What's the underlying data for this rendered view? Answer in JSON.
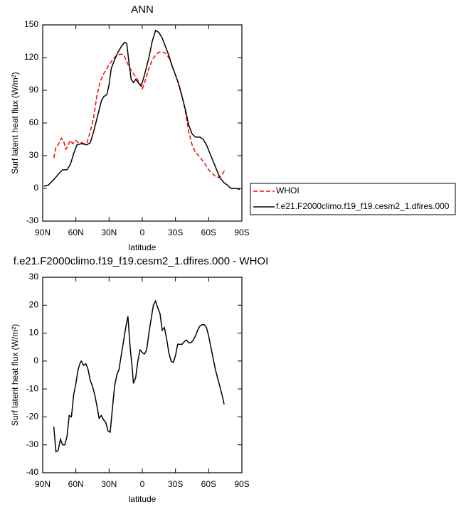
{
  "chart_data": [
    {
      "type": "line",
      "title": "ANN",
      "x_label": "latitude",
      "y_label": "Surf latent heat flux (W/m²)",
      "xlim": [
        90,
        -90
      ],
      "xticks": [
        {
          "value": 90,
          "label": "90N"
        },
        {
          "value": 60,
          "label": "60N"
        },
        {
          "value": 30,
          "label": "30N"
        },
        0,
        {
          "value": -30,
          "label": "30S"
        },
        {
          "value": -60,
          "label": "60S"
        },
        {
          "value": -90,
          "label": "90S"
        }
      ],
      "ylim": [
        -30,
        150
      ],
      "yticks": [
        -30,
        0,
        30,
        60,
        90,
        120,
        150
      ],
      "legend": "outside-right",
      "series": [
        {
          "name": "WHOI",
          "color": "#ff0000",
          "style": "dashed",
          "x": [
            80,
            78,
            76,
            73,
            71,
            69,
            67,
            65,
            63,
            60,
            58,
            55,
            52,
            50,
            47,
            44,
            41,
            38,
            35,
            32,
            29,
            26,
            23,
            20,
            17,
            14,
            11,
            8,
            5,
            2,
            0,
            -3,
            -6,
            -9,
            -12,
            -15,
            -18,
            -21,
            -24,
            -27,
            -30,
            -33,
            -36,
            -39,
            -42,
            -45,
            -48,
            -51,
            -54,
            -57,
            -60,
            -63,
            -66,
            -69,
            -72,
            -75
          ],
          "values": [
            28,
            38,
            40,
            46,
            43,
            36,
            40,
            44,
            41,
            44,
            42,
            42,
            41,
            42,
            52,
            65,
            85,
            98,
            105,
            110,
            115,
            119,
            122,
            123,
            123,
            116,
            110,
            105,
            101,
            96,
            91,
            100,
            110,
            118,
            122,
            125,
            125,
            124,
            120,
            113,
            104,
            96,
            85,
            70,
            52,
            40,
            33,
            30,
            26,
            22,
            17,
            14,
            11,
            10,
            12,
            18
          ]
        },
        {
          "name": "f.e21.F2000climo.f19_f19.cesm2_1.dfires.000",
          "color": "#000000",
          "style": "solid",
          "x": [
            89,
            85,
            80,
            75,
            72,
            68,
            65,
            62,
            59,
            55,
            50,
            47,
            44,
            40,
            37,
            35,
            32,
            30,
            28,
            25,
            22,
            19,
            16,
            14,
            12,
            10,
            8,
            6,
            3,
            1,
            0,
            -3,
            -6,
            -9,
            -12,
            -15,
            -18,
            -21,
            -24,
            -27,
            -30,
            -33,
            -36,
            -39,
            -42,
            -45,
            -48,
            -52,
            -55,
            -58,
            -62,
            -66,
            -70,
            -74,
            -77,
            -80,
            -85,
            -88
          ],
          "values": [
            2,
            3,
            8,
            14,
            17,
            17,
            22,
            32,
            40,
            41,
            40,
            42,
            52,
            68,
            80,
            84,
            86,
            95,
            110,
            118,
            125,
            130,
            134,
            133,
            115,
            100,
            97,
            100,
            96,
            94,
            97,
            108,
            120,
            135,
            145,
            143,
            138,
            130,
            122,
            112,
            104,
            95,
            84,
            72,
            58,
            50,
            47,
            47,
            45,
            40,
            30,
            20,
            10,
            5,
            3,
            0,
            0,
            -1
          ]
        }
      ]
    },
    {
      "type": "line",
      "title": "f.e21.F2000climo.f19_f19.cesm2_1.dfires.000 - WHOI",
      "x_label": "latitude",
      "y_label": "Surf latent heat flux (W/m²)",
      "xlim": [
        90,
        -90
      ],
      "xticks": [
        {
          "value": 90,
          "label": "90N"
        },
        {
          "value": 60,
          "label": "60N"
        },
        {
          "value": 30,
          "label": "30N"
        },
        0,
        {
          "value": -30,
          "label": "30S"
        },
        {
          "value": -60,
          "label": "60S"
        },
        {
          "value": -90,
          "label": "90S"
        }
      ],
      "ylim": [
        -40,
        30
      ],
      "yticks": [
        -40,
        -30,
        -20,
        -10,
        0,
        10,
        20,
        30
      ],
      "series": [
        {
          "color": "#000000",
          "style": "solid",
          "x": [
            80,
            78,
            76,
            74,
            72,
            70,
            68,
            66,
            64,
            62,
            60,
            58,
            56,
            55,
            53,
            51,
            49,
            47,
            45,
            43,
            41,
            39,
            37,
            35,
            33,
            31,
            29,
            27,
            25,
            23,
            21,
            19,
            17,
            15,
            13,
            11,
            9,
            8,
            6,
            4,
            2,
            0,
            -2,
            -4,
            -6,
            -8,
            -10,
            -12,
            -14,
            -16,
            -18,
            -20,
            -22,
            -24,
            -26,
            -28,
            -30,
            -32,
            -34,
            -36,
            -38,
            -40,
            -42,
            -44,
            -46,
            -48,
            -50,
            -52,
            -54,
            -56,
            -58,
            -60,
            -62,
            -64,
            -66,
            -68,
            -70,
            -72,
            -74
          ],
          "values": [
            -23.5,
            -32.5,
            -32,
            -28,
            -30,
            -30,
            -27,
            -19.5,
            -20,
            -12,
            -8,
            -3,
            -0.5,
            0,
            -1.5,
            -1,
            -3,
            -7,
            -9,
            -12,
            -16,
            -20.5,
            -19.5,
            -21,
            -22,
            -25,
            -25.5,
            -17,
            -9,
            -5,
            -3,
            2,
            7,
            12,
            16,
            5,
            -3,
            -8,
            -6,
            0,
            4,
            3,
            2.5,
            4,
            10,
            15,
            20,
            21.5,
            19,
            17,
            11,
            12,
            8,
            3,
            0,
            -0.5,
            2,
            6,
            6,
            6,
            7,
            7.5,
            6.5,
            6.5,
            7.5,
            9,
            11,
            12.5,
            13,
            13,
            12,
            9,
            5,
            1,
            -3,
            -6,
            -9,
            -12,
            -15.5
          ]
        }
      ]
    }
  ]
}
